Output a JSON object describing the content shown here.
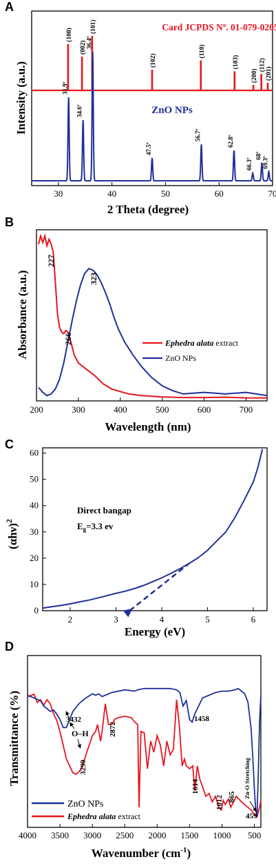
{
  "chart_data": [
    {
      "panel": "A",
      "type": "line",
      "xlabel": "2 Theta (degree)",
      "ylabel": "Intensity (a.u.)",
      "xlim": [
        25,
        70
      ],
      "xticks": [
        "30",
        "40",
        "50",
        "60",
        "70"
      ],
      "colors": {
        "card": "#e8141e",
        "zno": "#1f2f99"
      },
      "card_label": "Card JCPDS  Nº. 01-079-0205",
      "zno_label": "ZnO NPs",
      "card_peaks": [
        {
          "x": 31.8,
          "h": 0.85,
          "label": "(100)"
        },
        {
          "x": 34.4,
          "h": 0.62,
          "label": "(002)"
        },
        {
          "x": 36.3,
          "h": 1.0,
          "label": "(101)"
        },
        {
          "x": 47.5,
          "h": 0.38,
          "label": "(102)"
        },
        {
          "x": 56.6,
          "h": 0.55,
          "label": "(110)"
        },
        {
          "x": 62.9,
          "h": 0.35,
          "label": "(103)"
        },
        {
          "x": 66.4,
          "h": 0.1,
          "label": "(200)"
        },
        {
          "x": 67.9,
          "h": 0.3,
          "label": "(112)"
        },
        {
          "x": 69.1,
          "h": 0.14,
          "label": "(201)"
        }
      ],
      "zno_peaks": [
        {
          "x": 31.9,
          "h": 0.55,
          "label": "31.9º"
        },
        {
          "x": 34.6,
          "h": 0.4,
          "label": "34.6º"
        },
        {
          "x": 36.4,
          "h": 0.85,
          "label": "36.4º"
        },
        {
          "x": 47.5,
          "h": 0.15,
          "label": "47.5º"
        },
        {
          "x": 56.7,
          "h": 0.24,
          "label": "56.7º"
        },
        {
          "x": 62.8,
          "h": 0.2,
          "label": "62.8º"
        },
        {
          "x": 66.3,
          "h": 0.05,
          "label": "66.3º"
        },
        {
          "x": 68.0,
          "h": 0.12,
          "label": "68º"
        },
        {
          "x": 69.3,
          "h": 0.06,
          "label": "69.3º"
        }
      ]
    },
    {
      "panel": "B",
      "type": "line",
      "xlabel": "Wavelength (nm)",
      "ylabel": "Absorbance (a.u.)",
      "xlim": [
        200,
        750
      ],
      "xticks": [
        "200",
        "300",
        "400",
        "500",
        "600",
        "700"
      ],
      "series": [
        {
          "name": "Ephedra alata",
          "name_suffix": " extract",
          "color": "#e8141e",
          "x": [
            205,
            210,
            215,
            220,
            225,
            230,
            235,
            240,
            245,
            250,
            255,
            260,
            265,
            270,
            275,
            280,
            285,
            290,
            300,
            320,
            340,
            360,
            380,
            400,
            420,
            450,
            500,
            550,
            600,
            650,
            700,
            750
          ],
          "y": [
            0.95,
            1.0,
            0.96,
            1.0,
            0.94,
            0.98,
            0.95,
            0.9,
            0.72,
            0.52,
            0.44,
            0.41,
            0.4,
            0.42,
            0.41,
            0.37,
            0.32,
            0.27,
            0.22,
            0.18,
            0.14,
            0.09,
            0.06,
            0.045,
            0.03,
            0.02,
            0.012,
            0.008,
            0.008,
            0.01,
            0.006,
            0.005
          ]
        },
        {
          "name": "ZnO NPs",
          "name_suffix": "",
          "color": "#1f2f99",
          "x": [
            205,
            215,
            225,
            235,
            245,
            255,
            265,
            275,
            285,
            295,
            305,
            315,
            325,
            335,
            345,
            355,
            365,
            375,
            385,
            395,
            410,
            430,
            450,
            475,
            500,
            525,
            550,
            600,
            650,
            700,
            750
          ],
          "y": [
            0.07,
            0.04,
            0.02,
            0.03,
            0.06,
            0.12,
            0.22,
            0.35,
            0.48,
            0.6,
            0.7,
            0.77,
            0.8,
            0.79,
            0.76,
            0.71,
            0.65,
            0.58,
            0.5,
            0.43,
            0.35,
            0.27,
            0.2,
            0.13,
            0.08,
            0.05,
            0.03,
            0.04,
            0.03,
            0.04,
            0.02
          ]
        }
      ],
      "annotations": [
        "227",
        "266",
        "323"
      ]
    },
    {
      "panel": "C",
      "type": "line",
      "xlabel": "Energy (eV)",
      "ylabel": "(αhν)",
      "ylabel_sup": "2",
      "xlim": [
        1.4,
        6.3
      ],
      "ylim": [
        0,
        62
      ],
      "xticks": [
        2,
        3,
        4,
        5,
        6
      ],
      "yticks": [
        0,
        10,
        20,
        30,
        40,
        50,
        60
      ],
      "color": "#1f2f99",
      "curve": {
        "x": [
          1.4,
          1.6,
          1.8,
          2.0,
          2.2,
          2.4,
          2.6,
          2.8,
          3.0,
          3.2,
          3.4,
          3.6,
          3.8,
          4.0,
          4.2,
          4.4,
          4.6,
          4.8,
          5.0,
          5.2,
          5.4,
          5.6,
          5.8,
          6.0,
          6.1,
          6.2
        ],
        "y": [
          1.0,
          1.5,
          2.0,
          2.6,
          3.3,
          4.0,
          4.8,
          5.7,
          6.6,
          7.4,
          8.4,
          9.6,
          11.0,
          12.5,
          14.2,
          16.0,
          18.0,
          20.2,
          23.0,
          26.5,
          30.0,
          35.5,
          42.0,
          49.0,
          54.5,
          61.5
        ]
      },
      "tangent": {
        "x": [
          3.3,
          4.6
        ],
        "y": [
          0,
          18
        ]
      },
      "annotation_title": "Direct bangap",
      "annotation_eg_main": "E",
      "annotation_eg_sub": "g",
      "annotation_eg_value": "=3.3 ev"
    },
    {
      "panel": "D",
      "type": "line",
      "xlabel": "Wavenumber (cm",
      "xlabel_sup": "-1",
      "xlabel_close": ")",
      "ylabel": "Transmittance (%)",
      "xlim": [
        4000,
        400
      ],
      "xticks": [
        4000,
        3500,
        3000,
        2500,
        2000,
        1500,
        1000,
        500
      ],
      "series": [
        {
          "name": "ZnO NPs",
          "name_suffix": "",
          "color": "#1f2f99",
          "x": [
            4000,
            3900,
            3800,
            3750,
            3700,
            3650,
            3600,
            3550,
            3500,
            3450,
            3400,
            3350,
            3300,
            3200,
            3100,
            3000,
            2950,
            2900,
            2850,
            2800,
            2700,
            2500,
            2350,
            2300,
            2200,
            2000,
            1800,
            1700,
            1650,
            1600,
            1550,
            1500,
            1460,
            1420,
            1380,
            1300,
            1200,
            1100,
            1000,
            900,
            800,
            750,
            700,
            650,
            600,
            550,
            520,
            500,
            480,
            459,
            440,
            420,
            400
          ],
          "y": [
            0.1,
            0.12,
            0.14,
            0.18,
            0.2,
            0.22,
            0.21,
            0.24,
            0.28,
            0.34,
            0.34,
            0.28,
            0.22,
            0.16,
            0.12,
            0.09,
            0.1,
            0.09,
            0.11,
            0.1,
            0.08,
            0.06,
            0.07,
            0.06,
            0.05,
            0.05,
            0.05,
            0.06,
            0.08,
            0.18,
            0.14,
            0.28,
            0.3,
            0.24,
            0.2,
            0.12,
            0.1,
            0.08,
            0.07,
            0.07,
            0.06,
            0.05,
            0.07,
            0.09,
            0.15,
            0.35,
            0.6,
            0.8,
            0.95,
            1.0,
            0.7,
            0.3,
            0.1
          ]
        },
        {
          "name": "Ephedra alata",
          "name_suffix": " extract",
          "color": "#e8141e",
          "x": [
            4000,
            3900,
            3850,
            3800,
            3750,
            3700,
            3650,
            3600,
            3550,
            3500,
            3450,
            3400,
            3350,
            3300,
            3250,
            3200,
            3150,
            3100,
            3050,
            3000,
            2950,
            2920,
            2872,
            2850,
            2800,
            2750,
            2700,
            2650,
            2600,
            2500,
            2400,
            2350,
            2300,
            2280,
            2250,
            2200,
            2150,
            2100,
            2050,
            2000,
            1950,
            1900,
            1850,
            1800,
            1750,
            1700,
            1660,
            1614,
            1580,
            1550,
            1500,
            1450,
            1420,
            1380,
            1340,
            1300,
            1250,
            1200,
            1150,
            1100,
            1050,
            1012,
            980,
            950,
            900,
            865,
            820,
            780,
            740,
            700,
            650,
            600,
            550,
            500,
            459,
            420,
            400
          ],
          "y": [
            0.1,
            0.08,
            0.14,
            0.12,
            0.16,
            0.12,
            0.15,
            0.22,
            0.27,
            0.35,
            0.45,
            0.55,
            0.6,
            0.65,
            0.66,
            0.64,
            0.6,
            0.52,
            0.45,
            0.38,
            0.35,
            0.3,
            0.42,
            0.35,
            0.15,
            0.3,
            0.3,
            0.26,
            0.25,
            0.24,
            0.25,
            0.28,
            0.3,
            0.9,
            0.35,
            0.36,
            0.62,
            0.42,
            0.5,
            0.38,
            0.45,
            0.6,
            0.42,
            0.52,
            0.48,
            0.12,
            0.3,
            0.6,
            0.55,
            0.6,
            0.62,
            0.6,
            0.78,
            0.6,
            0.7,
            0.75,
            0.82,
            0.8,
            0.86,
            0.82,
            0.9,
            0.92,
            0.85,
            0.88,
            0.84,
            0.9,
            0.86,
            0.82,
            0.84,
            0.86,
            0.88,
            0.9,
            0.92,
            0.95,
            0.97,
            0.9,
            0.85
          ]
        }
      ],
      "annotations": [
        "3432",
        "O–H",
        "3299",
        "2872",
        "1458",
        "1614",
        "1012",
        "865",
        "459",
        "Zn-O Stretching"
      ]
    }
  ]
}
